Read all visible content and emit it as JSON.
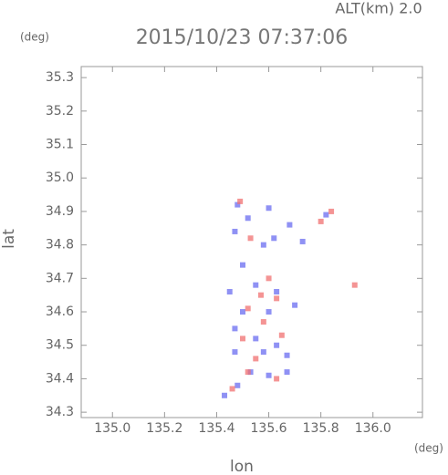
{
  "chart_data": {
    "type": "scatter",
    "title": "2015/10/23 07:37:06",
    "subtitle": "ALT(km) 2.0",
    "y_unit": "(deg)",
    "x_unit": "(deg)",
    "xlabel": "lon",
    "ylabel": "lat",
    "xlim": [
      134.88,
      136.19
    ],
    "ylim": [
      34.284,
      35.333
    ],
    "xticks": [
      {
        "value": 135,
        "label": "135.0"
      },
      135.2,
      135.4,
      135.6,
      135.8,
      {
        "value": 136,
        "label": "136.0"
      }
    ],
    "yticks": [
      34.3,
      34.4,
      34.5,
      34.6,
      34.7,
      34.8,
      34.9,
      {
        "value": 35,
        "label": "35.0"
      },
      35.1,
      35.2,
      35.3
    ],
    "series": [
      {
        "color": "#6a6cf0",
        "x": [
          135.48,
          135.52,
          135.6,
          135.62,
          135.68,
          135.73,
          135.47,
          135.58,
          135.5,
          135.45,
          135.55,
          135.63,
          135.6,
          135.5,
          135.47,
          135.55,
          135.63,
          135.47,
          135.58,
          135.67,
          135.53,
          135.6,
          135.67,
          135.48,
          135.43,
          135.82,
          135.7
        ],
        "y": [
          34.92,
          34.88,
          34.91,
          34.82,
          34.86,
          34.81,
          34.84,
          34.8,
          34.74,
          34.66,
          34.68,
          34.66,
          34.6,
          34.6,
          34.55,
          34.52,
          34.5,
          34.48,
          34.48,
          34.47,
          34.42,
          34.41,
          34.42,
          34.38,
          34.35,
          34.89,
          34.62
        ]
      },
      {
        "color": "#f07070",
        "x": [
          135.49,
          135.84,
          135.8,
          135.53,
          135.6,
          135.57,
          135.63,
          135.52,
          135.58,
          135.5,
          135.65,
          135.55,
          135.52,
          135.63,
          135.93,
          135.46
        ],
        "y": [
          34.93,
          34.9,
          34.87,
          34.82,
          34.7,
          34.65,
          34.64,
          34.61,
          34.57,
          34.52,
          34.53,
          34.46,
          34.42,
          34.4,
          34.68,
          34.37
        ]
      }
    ]
  }
}
